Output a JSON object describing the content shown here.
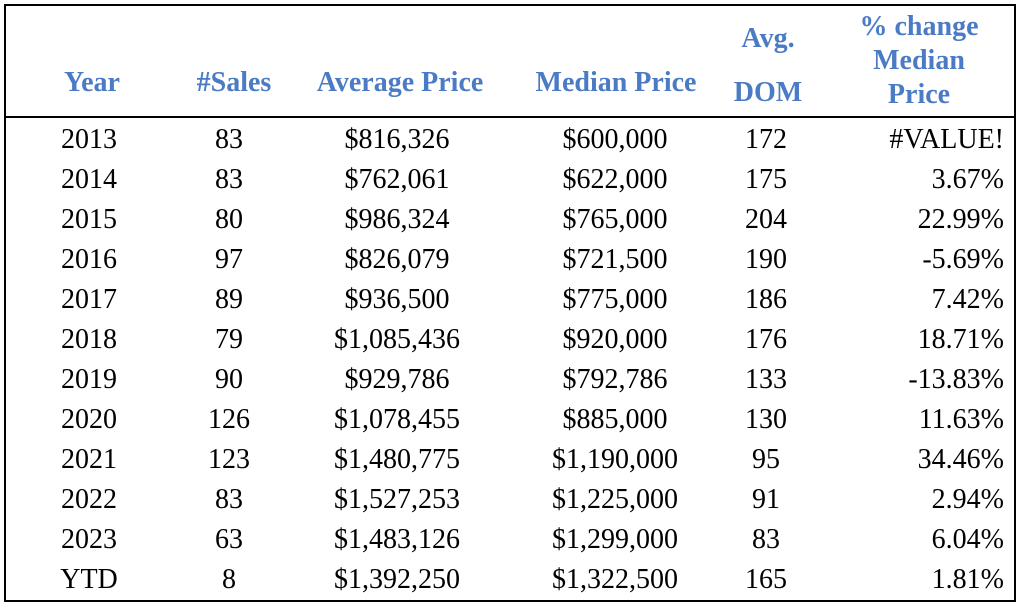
{
  "chart_data": {
    "type": "table",
    "columns": [
      {
        "key": "year",
        "lines": [
          "Year"
        ]
      },
      {
        "key": "sales",
        "lines": [
          "#Sales"
        ]
      },
      {
        "key": "average_price",
        "lines": [
          "Average Price"
        ]
      },
      {
        "key": "median_price",
        "lines": [
          "Median Price"
        ]
      },
      {
        "key": "avg_dom",
        "lines": [
          "Avg.",
          "DOM"
        ]
      },
      {
        "key": "pct_change_median",
        "lines": [
          "% change",
          "Median",
          "Price"
        ]
      }
    ],
    "rows": [
      {
        "year": "2013",
        "sales": "83",
        "average_price": "$816,326",
        "median_price": "$600,000",
        "avg_dom": "172",
        "pct_change_median": "#VALUE!"
      },
      {
        "year": "2014",
        "sales": "83",
        "average_price": "$762,061",
        "median_price": "$622,000",
        "avg_dom": "175",
        "pct_change_median": "3.67%"
      },
      {
        "year": "2015",
        "sales": "80",
        "average_price": "$986,324",
        "median_price": "$765,000",
        "avg_dom": "204",
        "pct_change_median": "22.99%"
      },
      {
        "year": "2016",
        "sales": "97",
        "average_price": "$826,079",
        "median_price": "$721,500",
        "avg_dom": "190",
        "pct_change_median": "-5.69%"
      },
      {
        "year": "2017",
        "sales": "89",
        "average_price": "$936,500",
        "median_price": "$775,000",
        "avg_dom": "186",
        "pct_change_median": "7.42%"
      },
      {
        "year": "2018",
        "sales": "79",
        "average_price": "$1,085,436",
        "median_price": "$920,000",
        "avg_dom": "176",
        "pct_change_median": "18.71%"
      },
      {
        "year": "2019",
        "sales": "90",
        "average_price": "$929,786",
        "median_price": "$792,786",
        "avg_dom": "133",
        "pct_change_median": "-13.83%"
      },
      {
        "year": "2020",
        "sales": "126",
        "average_price": "$1,078,455",
        "median_price": "$885,000",
        "avg_dom": "130",
        "pct_change_median": "11.63%"
      },
      {
        "year": "2021",
        "sales": "123",
        "average_price": "$1,480,775",
        "median_price": "$1,190,000",
        "avg_dom": "95",
        "pct_change_median": "34.46%"
      },
      {
        "year": "2022",
        "sales": "83",
        "average_price": "$1,527,253",
        "median_price": "$1,225,000",
        "avg_dom": "91",
        "pct_change_median": "2.94%"
      },
      {
        "year": "2023",
        "sales": "63",
        "average_price": "$1,483,126",
        "median_price": "$1,299,000",
        "avg_dom": "83",
        "pct_change_median": "6.04%"
      },
      {
        "year": "YTD",
        "sales": "8",
        "average_price": "$1,392,250",
        "median_price": "$1,322,500",
        "avg_dom": "165",
        "pct_change_median": "1.81%"
      }
    ]
  },
  "colors": {
    "header_text": "#4a7bc4",
    "body_text": "#000000",
    "border": "#000000",
    "background": "#ffffff"
  }
}
